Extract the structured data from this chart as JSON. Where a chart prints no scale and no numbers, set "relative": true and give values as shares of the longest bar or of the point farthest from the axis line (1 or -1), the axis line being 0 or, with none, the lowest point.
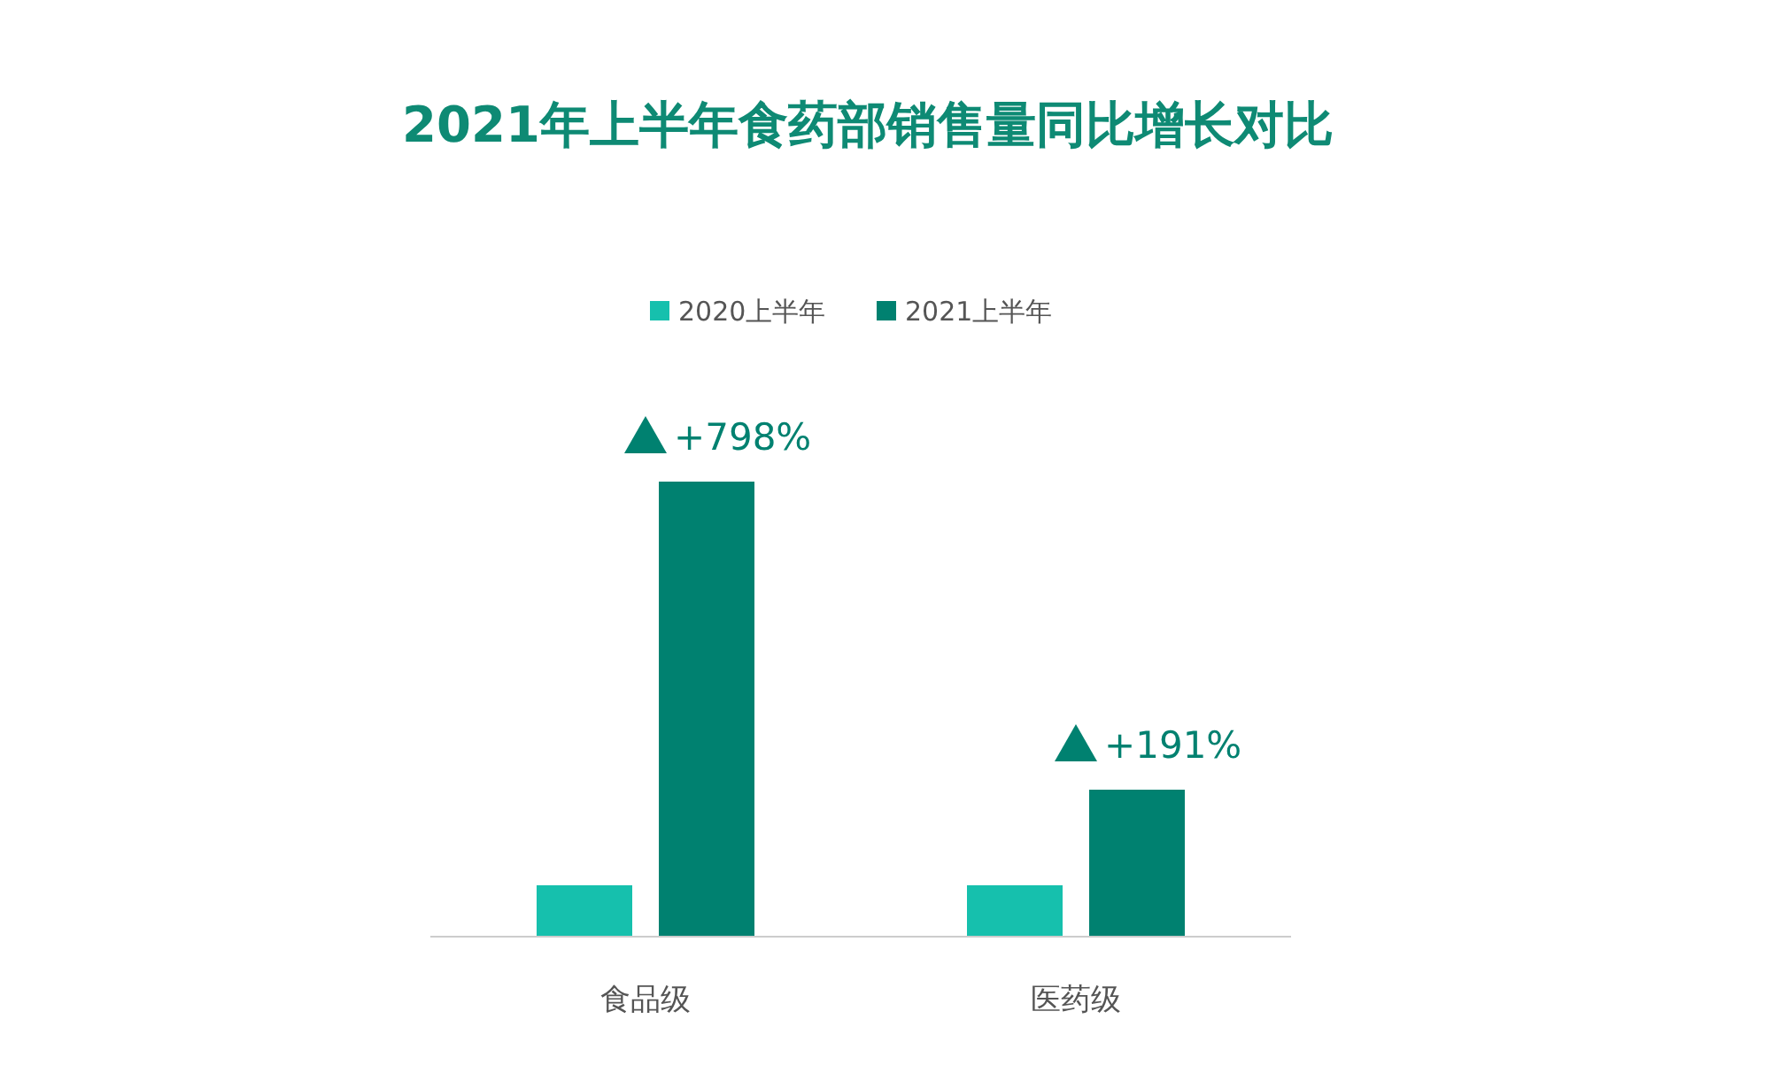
{
  "chart_data": {
    "type": "bar",
    "title": "2021年上半年食药部销售量同比增长对比",
    "categories": [
      "食品级",
      "医药级"
    ],
    "relative": true,
    "series": [
      {
        "name": "2020上半年",
        "color": "#16c0ad",
        "values": [
          0.113,
          0.113
        ]
      },
      {
        "name": "2021上半年",
        "color": "#008170",
        "values": [
          1,
          0.323
        ]
      }
    ],
    "annotations": [
      "+798%",
      "+191%"
    ],
    "legend": "top"
  }
}
